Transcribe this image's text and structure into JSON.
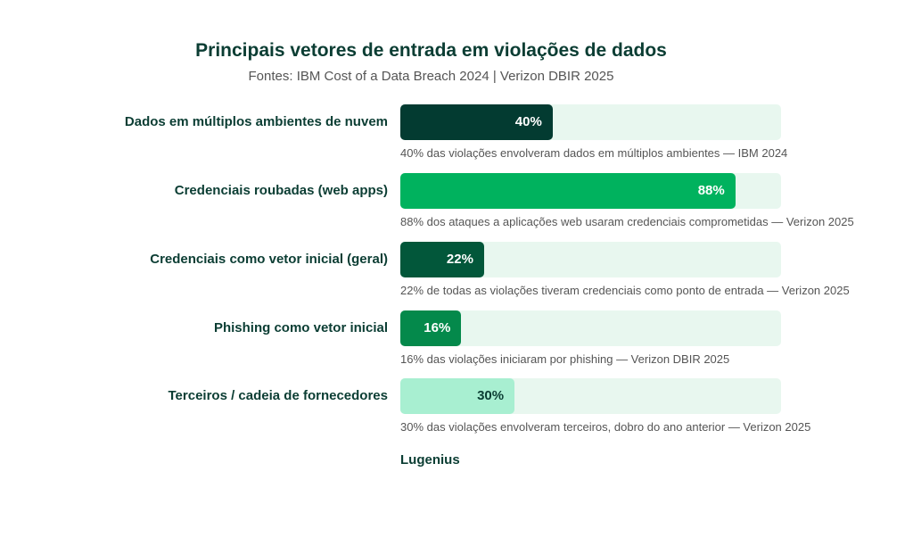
{
  "chart_data": {
    "type": "bar",
    "orientation": "horizontal",
    "title": "Principais vetores de entrada em violações de dados",
    "subtitle": "Fontes: IBM Cost of a Data Breach 2024 | Verizon DBIR 2025",
    "xlim": [
      0,
      100
    ],
    "unit": "%",
    "categories": [
      "Dados em múltiplos ambientes de nuvem",
      "Credenciais roubadas (web apps)",
      "Credenciais como vetor inicial (geral)",
      "Phishing como vetor inicial",
      "Terceiros / cadeia de fornecedores"
    ],
    "values": [
      40,
      88,
      22,
      16,
      30
    ],
    "value_labels": [
      "40%",
      "88%",
      "22%",
      "16%",
      "30%"
    ],
    "notes": [
      "40% das violações envolveram dados em múltiplos ambientes — IBM 2024",
      "88% dos ataques a aplicações web usaram credenciais comprometidas — Verizon 2025",
      "22% de todas as violações tiveram credenciais como ponto de entrada — Verizon 2025",
      "16% das violações iniciaram por phishing — Verizon DBIR 2025",
      "30% das violações envolveram terceiros, dobro do ano anterior — Verizon 2025"
    ],
    "colors": [
      "#033b31",
      "#00b25e",
      "#02573a",
      "#04894b",
      "#a8efd1"
    ],
    "value_label_colors": [
      "#ffffff",
      "#ffffff",
      "#ffffff",
      "#ffffff",
      "#0b3d33"
    ],
    "track_color": "#e8f7ef"
  },
  "brand": "Lugenius"
}
